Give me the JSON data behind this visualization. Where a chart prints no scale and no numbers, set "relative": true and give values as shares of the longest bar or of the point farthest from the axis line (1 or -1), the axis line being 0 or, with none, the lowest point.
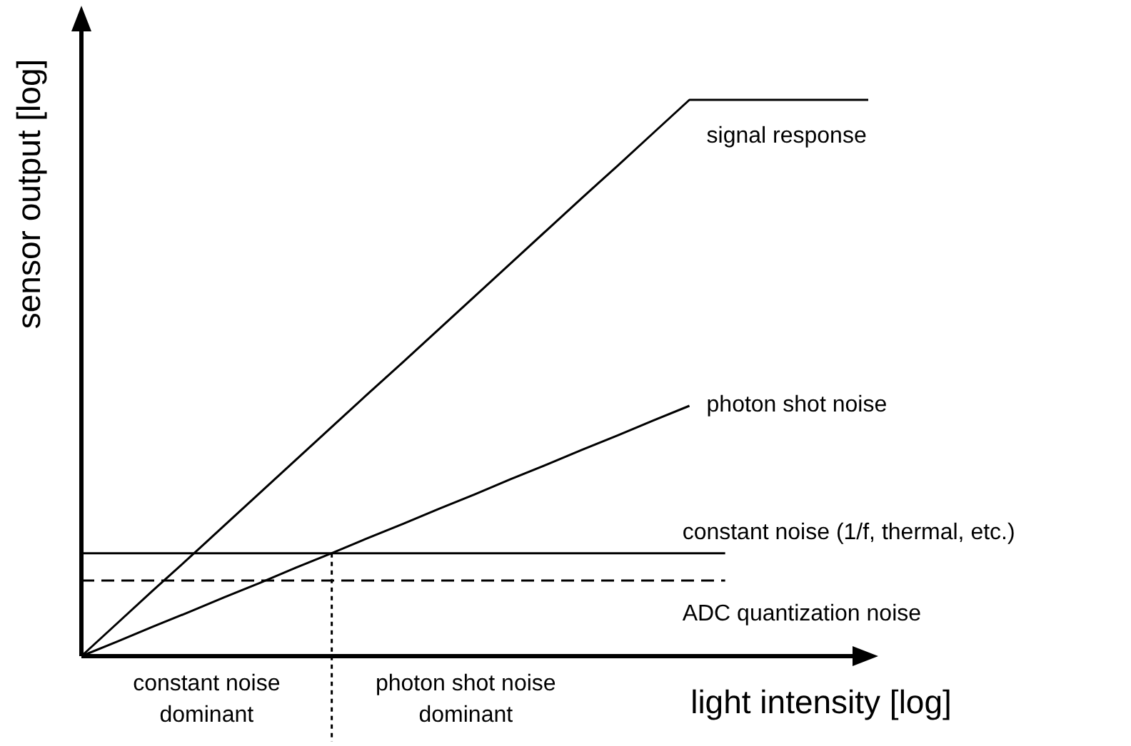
{
  "chart_data": {
    "type": "line",
    "relative": true,
    "xlabel": "light intensity [log]",
    "ylabel": "sensor output [log]",
    "legend": false,
    "categories": [
      null,
      null,
      null,
      null,
      null,
      null,
      null,
      null,
      null,
      null,
      null,
      null,
      null,
      null,
      null,
      null,
      null,
      null,
      null,
      null,
      null,
      null,
      null
    ],
    "series": [
      {
        "name": "signal response",
        "color": "#000000",
        "values": [
          0,
          0.059,
          0.118,
          0.176,
          0.235,
          0.294,
          0.353,
          0.412,
          0.471,
          0.529,
          0.588,
          0.647,
          0.706,
          0.765,
          0.824,
          0.882,
          0.941,
          1,
          1,
          1,
          1,
          1,
          1
        ]
      },
      {
        "name": "photon shot noise",
        "color": "#000000",
        "values": [
          0,
          0.026,
          0.053,
          0.079,
          0.106,
          0.132,
          0.159,
          0.185,
          0.212,
          0.238,
          0.265,
          0.291,
          0.318,
          0.344,
          0.371,
          0.397,
          0.424,
          0.45,
          null,
          null,
          null,
          null,
          null
        ]
      },
      {
        "name": "constant noise (1/f, thermal, etc.)",
        "color": "#000000",
        "values": [
          0.185,
          0.185,
          0.185,
          0.185,
          0.185,
          0.185,
          0.185,
          0.185,
          0.185,
          0.185,
          0.185,
          0.185,
          0.185,
          0.185,
          0.185,
          0.185,
          0.185,
          0.185,
          0.185,
          null,
          null,
          null,
          null
        ]
      },
      {
        "name": "ADC quantization noise",
        "color": "#000000",
        "values": [
          0.136,
          0.136,
          0.136,
          0.136,
          0.136,
          0.136,
          0.136,
          0.136,
          0.136,
          0.136,
          0.136,
          0.136,
          0.136,
          0.136,
          0.136,
          0.136,
          0.136,
          0.136,
          0.136,
          null,
          null,
          null,
          null
        ],
        "line_style": "dashed"
      }
    ],
    "annotations": [
      "constant noise dominant",
      "photon shot noise dominant"
    ]
  }
}
